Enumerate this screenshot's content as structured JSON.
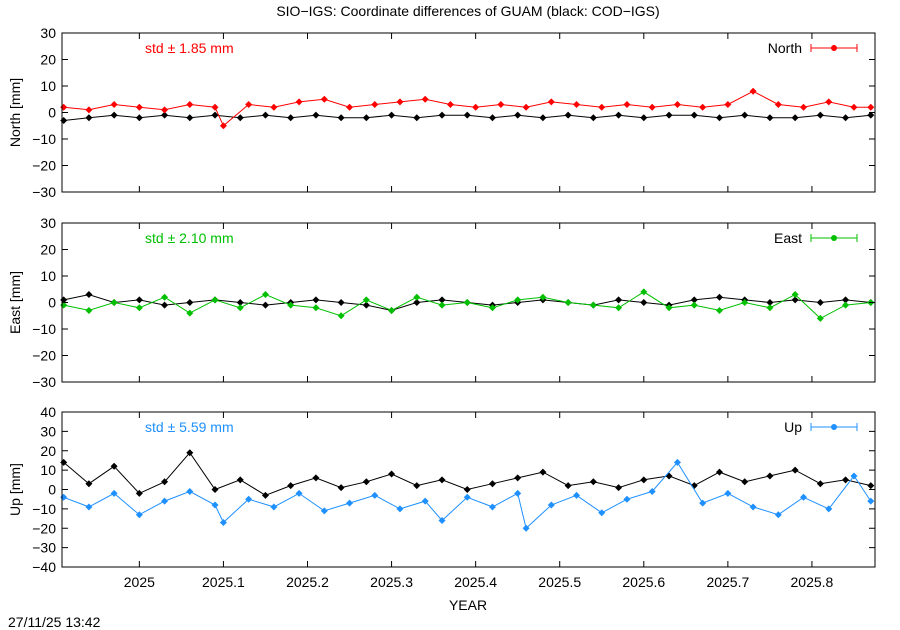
{
  "title": "SIO−IGS: Coordinate differences of GUAM (black: COD−IGS)",
  "timestamp": "27/11/25 13:42",
  "xlabel": "YEAR",
  "chart_data": [
    {
      "type": "line",
      "component": "North",
      "ylabel": "North [mm]",
      "ylim": [
        -30,
        30
      ],
      "yticks": [
        -30,
        -20,
        -10,
        0,
        10,
        20,
        30
      ],
      "ytick_labels": [
        "−30",
        "−20",
        "−10",
        "0",
        "10",
        "20",
        "30"
      ],
      "xlim": [
        2024.908,
        2025.875
      ],
      "xticks": [
        2025,
        2025.1,
        2025.2,
        2025.3,
        2025.4,
        2025.5,
        2025.6,
        2025.7,
        2025.8
      ],
      "xtick_labels": [
        "2025",
        "2025.1",
        "2025.2",
        "2025.3",
        "2025.4",
        "2025.5",
        "2025.6",
        "2025.7",
        "2025.8"
      ],
      "std_label": "std ± 1.85 mm",
      "legend": "North",
      "color": "#ff0000",
      "reference_color": "#000000",
      "series": [
        {
          "name": "North",
          "color": "#ff0000",
          "x": [
            2024.91,
            2024.94,
            2024.97,
            2025.0,
            2025.03,
            2025.06,
            2025.09,
            2025.1,
            2025.13,
            2025.16,
            2025.19,
            2025.22,
            2025.25,
            2025.28,
            2025.31,
            2025.34,
            2025.37,
            2025.4,
            2025.43,
            2025.46,
            2025.49,
            2025.52,
            2025.55,
            2025.58,
            2025.61,
            2025.64,
            2025.67,
            2025.7,
            2025.73,
            2025.76,
            2025.79,
            2025.82,
            2025.85,
            2025.87
          ],
          "y": [
            2,
            1,
            3,
            2,
            1,
            3,
            2,
            -5,
            3,
            2,
            4,
            5,
            2,
            3,
            4,
            5,
            3,
            2,
            3,
            2,
            4,
            3,
            2,
            3,
            2,
            3,
            2,
            3,
            8,
            3,
            2,
            4,
            2,
            2
          ]
        },
        {
          "name": "",
          "color": "#000000",
          "x": [
            2024.91,
            2024.94,
            2024.97,
            2025.0,
            2025.03,
            2025.06,
            2025.09,
            2025.12,
            2025.15,
            2025.18,
            2025.21,
            2025.24,
            2025.27,
            2025.3,
            2025.33,
            2025.36,
            2025.39,
            2025.42,
            2025.45,
            2025.48,
            2025.51,
            2025.54,
            2025.57,
            2025.6,
            2025.63,
            2025.66,
            2025.69,
            2025.72,
            2025.75,
            2025.78,
            2025.81,
            2025.84,
            2025.87
          ],
          "y": [
            -3,
            -2,
            -1,
            -2,
            -1,
            -2,
            -1,
            -2,
            -1,
            -2,
            -1,
            -2,
            -2,
            -1,
            -2,
            -1,
            -1,
            -2,
            -1,
            -2,
            -1,
            -2,
            -1,
            -2,
            -1,
            -1,
            -2,
            -1,
            -2,
            -2,
            -1,
            -2,
            -1
          ]
        }
      ]
    },
    {
      "type": "line",
      "component": "East",
      "ylabel": "East [mm]",
      "ylim": [
        -30,
        30
      ],
      "yticks": [
        -30,
        -20,
        -10,
        0,
        10,
        20,
        30
      ],
      "ytick_labels": [
        "−30",
        "−20",
        "−10",
        "0",
        "10",
        "20",
        "30"
      ],
      "xlim": [
        2024.908,
        2025.875
      ],
      "xticks": [
        2025,
        2025.1,
        2025.2,
        2025.3,
        2025.4,
        2025.5,
        2025.6,
        2025.7,
        2025.8
      ],
      "xtick_labels": [
        "2025",
        "2025.1",
        "2025.2",
        "2025.3",
        "2025.4",
        "2025.5",
        "2025.6",
        "2025.7",
        "2025.8"
      ],
      "std_label": "std ± 2.10 mm",
      "legend": "East",
      "color": "#00c000",
      "reference_color": "#000000",
      "series": [
        {
          "name": "East",
          "color": "#00c000",
          "x": [
            2024.91,
            2024.94,
            2024.97,
            2025.0,
            2025.03,
            2025.06,
            2025.09,
            2025.12,
            2025.15,
            2025.18,
            2025.21,
            2025.24,
            2025.27,
            2025.3,
            2025.33,
            2025.36,
            2025.39,
            2025.42,
            2025.45,
            2025.48,
            2025.51,
            2025.54,
            2025.57,
            2025.6,
            2025.63,
            2025.66,
            2025.69,
            2025.72,
            2025.75,
            2025.78,
            2025.81,
            2025.84,
            2025.87
          ],
          "y": [
            -1,
            -3,
            0,
            -2,
            2,
            -4,
            1,
            -2,
            3,
            -1,
            -2,
            -5,
            1,
            -3,
            2,
            -1,
            0,
            -2,
            1,
            2,
            0,
            -1,
            -2,
            4,
            -2,
            -1,
            -3,
            0,
            -2,
            3,
            -6,
            -1,
            0
          ]
        },
        {
          "name": "",
          "color": "#000000",
          "x": [
            2024.91,
            2024.94,
            2024.97,
            2025.0,
            2025.03,
            2025.06,
            2025.09,
            2025.12,
            2025.15,
            2025.18,
            2025.21,
            2025.24,
            2025.27,
            2025.3,
            2025.33,
            2025.36,
            2025.39,
            2025.42,
            2025.45,
            2025.48,
            2025.51,
            2025.54,
            2025.57,
            2025.6,
            2025.63,
            2025.66,
            2025.69,
            2025.72,
            2025.75,
            2025.78,
            2025.81,
            2025.84,
            2025.87
          ],
          "y": [
            1,
            3,
            0,
            1,
            -1,
            0,
            1,
            0,
            -1,
            0,
            1,
            0,
            -1,
            -3,
            0,
            1,
            0,
            -1,
            0,
            1,
            0,
            -1,
            1,
            0,
            -1,
            1,
            2,
            1,
            0,
            1,
            0,
            1,
            0
          ]
        }
      ]
    },
    {
      "type": "line",
      "component": "Up",
      "ylabel": "Up [mm]",
      "ylim": [
        -40,
        40
      ],
      "yticks": [
        -40,
        -30,
        -20,
        -10,
        0,
        10,
        20,
        30,
        40
      ],
      "ytick_labels": [
        "−40",
        "−30",
        "−20",
        "−10",
        "0",
        "10",
        "20",
        "30",
        "40"
      ],
      "xlim": [
        2024.908,
        2025.875
      ],
      "xticks": [
        2025,
        2025.1,
        2025.2,
        2025.3,
        2025.4,
        2025.5,
        2025.6,
        2025.7,
        2025.8
      ],
      "xtick_labels": [
        "2025",
        "2025.1",
        "2025.2",
        "2025.3",
        "2025.4",
        "2025.5",
        "2025.6",
        "2025.7",
        "2025.8"
      ],
      "std_label": "std ± 5.59 mm",
      "legend": "Up",
      "color": "#1e90ff",
      "reference_color": "#000000",
      "series": [
        {
          "name": "Up",
          "color": "#1e90ff",
          "x": [
            2024.91,
            2024.94,
            2024.97,
            2025.0,
            2025.03,
            2025.06,
            2025.09,
            2025.1,
            2025.13,
            2025.16,
            2025.19,
            2025.22,
            2025.25,
            2025.28,
            2025.31,
            2025.34,
            2025.36,
            2025.39,
            2025.42,
            2025.45,
            2025.46,
            2025.49,
            2025.52,
            2025.55,
            2025.58,
            2025.61,
            2025.64,
            2025.67,
            2025.7,
            2025.73,
            2025.76,
            2025.79,
            2025.82,
            2025.85,
            2025.87
          ],
          "y": [
            -4,
            -9,
            -2,
            -13,
            -6,
            -1,
            -8,
            -17,
            -5,
            -9,
            -2,
            -11,
            -7,
            -3,
            -10,
            -6,
            -16,
            -4,
            -9,
            -2,
            -20,
            -8,
            -3,
            -12,
            -5,
            -1,
            14,
            -7,
            -2,
            -9,
            -13,
            -4,
            -10,
            7,
            -6
          ]
        },
        {
          "name": "",
          "color": "#000000",
          "x": [
            2024.91,
            2024.94,
            2024.97,
            2025.0,
            2025.03,
            2025.06,
            2025.09,
            2025.12,
            2025.15,
            2025.18,
            2025.21,
            2025.24,
            2025.27,
            2025.3,
            2025.33,
            2025.36,
            2025.39,
            2025.42,
            2025.45,
            2025.48,
            2025.51,
            2025.54,
            2025.57,
            2025.6,
            2025.63,
            2025.66,
            2025.69,
            2025.72,
            2025.75,
            2025.78,
            2025.81,
            2025.84,
            2025.87
          ],
          "y": [
            14,
            3,
            12,
            -2,
            4,
            19,
            0,
            5,
            -3,
            2,
            6,
            1,
            4,
            8,
            2,
            5,
            0,
            3,
            6,
            9,
            2,
            4,
            1,
            5,
            7,
            2,
            9,
            4,
            7,
            10,
            3,
            5,
            2
          ]
        }
      ]
    }
  ]
}
